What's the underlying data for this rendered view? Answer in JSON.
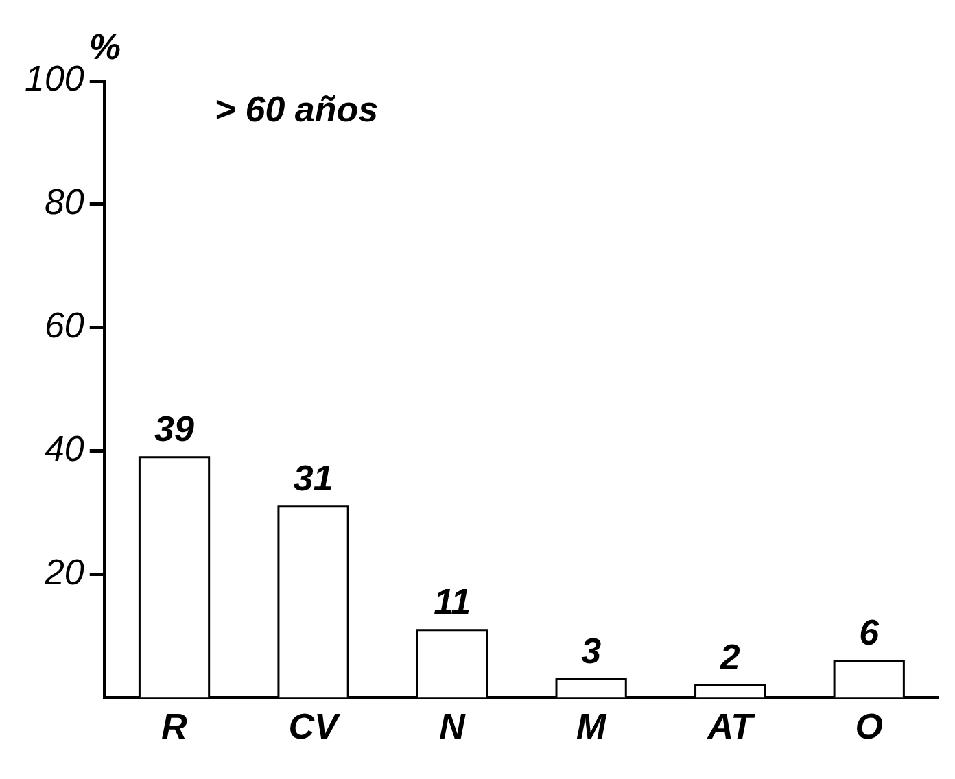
{
  "chart_data": {
    "type": "bar",
    "title": "> 60 años",
    "ylabel": "%",
    "categories": [
      "R",
      "CV",
      "N",
      "M",
      "AT",
      "O"
    ],
    "values": [
      39,
      31,
      11,
      3,
      2,
      6
    ],
    "color": "#ffffff",
    "ylim": [
      0,
      100
    ],
    "yticks": [
      20,
      40,
      60,
      80,
      100
    ],
    "data_labels": true,
    "grid": false,
    "legend": false
  }
}
